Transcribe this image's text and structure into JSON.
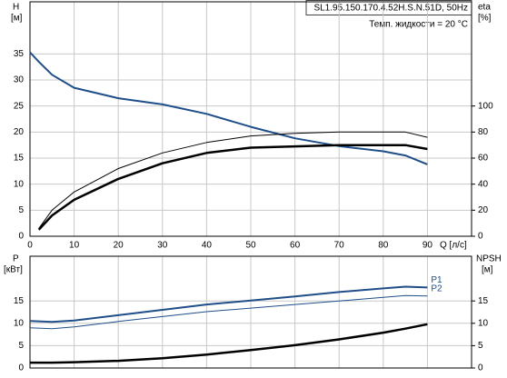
{
  "chart_data": [
    {
      "type": "line",
      "title": "SL1.95.150.170.4.52H.S.N.51D, 50Hz",
      "subtitle": "Темп. жидкости = 20 °C",
      "y_label": "H",
      "y_unit": "[м]",
      "y2_label": "eta",
      "y2_unit": "[%]",
      "x_label": "Q [л/с]",
      "x": [
        0,
        2,
        5,
        10,
        20,
        30,
        40,
        50,
        60,
        70,
        80,
        85,
        90
      ],
      "series": [
        {
          "color": "#1f4e89",
          "width": 2,
          "values": [
            35.3,
            33.5,
            31,
            28.5,
            26.5,
            25.3,
            23.5,
            21,
            18.8,
            17.3,
            16.3,
            15.5,
            13.8
          ]
        },
        {
          "color": "#000000",
          "width": 1,
          "axis": "y2",
          "values": [
            null,
            6,
            20,
            34,
            52,
            64,
            72,
            77,
            79,
            80,
            80,
            80,
            76
          ]
        },
        {
          "color": "#000000",
          "width": 2.5,
          "axis": "y2",
          "values": [
            null,
            5,
            16,
            28,
            44,
            56,
            64,
            68,
            69,
            70,
            70,
            70,
            67
          ]
        }
      ],
      "xlim": [
        0,
        100
      ],
      "xticks": [
        0,
        10,
        20,
        30,
        40,
        50,
        60,
        70,
        80,
        90
      ],
      "ylim": [
        0,
        45
      ],
      "yticks": [
        0,
        5,
        10,
        15,
        20,
        25,
        30,
        35
      ],
      "y2lim": [
        0,
        180
      ],
      "y2ticks": [
        0,
        20,
        40,
        60,
        80,
        100
      ],
      "grid": true
    },
    {
      "type": "line",
      "y_label": "P",
      "y_unit": "[кВт]",
      "y2_label": "NPSH",
      "y2_unit": "[м]",
      "x": [
        0,
        5,
        10,
        20,
        30,
        40,
        50,
        60,
        70,
        80,
        85,
        90
      ],
      "series": [
        {
          "name": "P1",
          "color": "#1f4e89",
          "width": 2,
          "values": [
            10.5,
            10.3,
            10.6,
            11.8,
            13,
            14.2,
            15.1,
            16,
            17,
            17.8,
            18.2,
            18
          ]
        },
        {
          "name": "P2",
          "color": "#1f4e89",
          "width": 1,
          "values": [
            9,
            8.8,
            9.2,
            10.4,
            11.5,
            12.6,
            13.4,
            14.2,
            15,
            15.8,
            16.2,
            16.1
          ]
        },
        {
          "color": "#000000",
          "width": 2.5,
          "axis": "y2",
          "values": [
            1.2,
            1.2,
            1.3,
            1.6,
            2.2,
            3,
            4,
            5.1,
            6.4,
            7.9,
            8.8,
            9.8
          ]
        }
      ],
      "xlim": [
        0,
        100
      ],
      "ylim": [
        0,
        25
      ],
      "yticks": [
        0,
        5,
        10,
        15
      ],
      "y2lim": [
        0,
        25
      ],
      "y2ticks": [
        0,
        5,
        10,
        15
      ],
      "grid": true
    }
  ]
}
